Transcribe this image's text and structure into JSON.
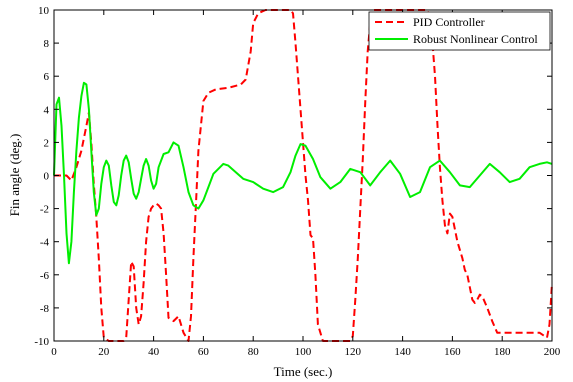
{
  "chart_data": {
    "type": "line",
    "xlabel": "Time (sec.)",
    "ylabel": "Fin angle (deg.)",
    "xlim": [
      0,
      200
    ],
    "ylim": [
      -10,
      10
    ],
    "xticks": [
      "0",
      "20",
      "40",
      "60",
      "80",
      "100",
      "120",
      "140",
      "160",
      "180",
      "200"
    ],
    "yticks": [
      "-10",
      "-8",
      "-6",
      "-4",
      "-2",
      "0",
      "2",
      "4",
      "6",
      "8",
      "10"
    ],
    "grid": false,
    "legend_position": "top-right",
    "series": [
      {
        "name": "PID Controller",
        "color": "#ff0000",
        "style": "dashed",
        "x": [
          0,
          5,
          7,
          9,
          11,
          13,
          14,
          15,
          16,
          17,
          18,
          19,
          20,
          22,
          25,
          28,
          29,
          30,
          31,
          32,
          33,
          34,
          35,
          36,
          37,
          38,
          39,
          40,
          41,
          42,
          43,
          44,
          45,
          46,
          48,
          50,
          52,
          54,
          55,
          56,
          57,
          58,
          60,
          62,
          65,
          70,
          75,
          77,
          79,
          80,
          82,
          85,
          88,
          90,
          92,
          94,
          95,
          96,
          97,
          98,
          99,
          100,
          101,
          102,
          103,
          104,
          105,
          106,
          108,
          110,
          112,
          115,
          117,
          119,
          120,
          121,
          122,
          123,
          124,
          125,
          126,
          127,
          128,
          130,
          135,
          140,
          145,
          148,
          150,
          151,
          152,
          153,
          154,
          155,
          156,
          157,
          158,
          159,
          160,
          162,
          164,
          165,
          166,
          168,
          169,
          170,
          171,
          172,
          174,
          176,
          178,
          180,
          185,
          190,
          195,
          198,
          199,
          200
        ],
        "y": [
          0,
          0,
          -0.3,
          0.5,
          1.5,
          3,
          3.8,
          2,
          -0.5,
          -2.5,
          -5,
          -8,
          -9.8,
          -10,
          -10,
          -10,
          -9.8,
          -7.5,
          -5.2,
          -5.5,
          -8,
          -9,
          -8.5,
          -6.5,
          -4,
          -2.5,
          -2,
          -1.8,
          -1.7,
          -1.8,
          -2,
          -3.5,
          -6,
          -8.6,
          -8.8,
          -8.5,
          -9.5,
          -10,
          -8.5,
          -5,
          -1.8,
          1.5,
          4.5,
          5,
          5.2,
          5.3,
          5.5,
          5.8,
          7.5,
          9.2,
          9.8,
          10,
          10,
          10,
          10,
          10,
          10,
          9.8,
          8,
          6,
          4,
          2,
          0,
          -1.5,
          -3.6,
          -3.8,
          -6,
          -9,
          -10,
          -10,
          -10,
          -10,
          -10,
          -10,
          -9.7,
          -7.5,
          -5,
          -2,
          1,
          4.5,
          7.5,
          9.2,
          10,
          10,
          10,
          10,
          10,
          10,
          10,
          9.5,
          8,
          6,
          3,
          0.5,
          -1.5,
          -3,
          -3.5,
          -2.3,
          -2.5,
          -4,
          -5,
          -5.7,
          -6,
          -7.5,
          -7.7,
          -7.5,
          -7.2,
          -7.3,
          -8,
          -8.8,
          -9.5,
          -9.5,
          -9.5,
          -9.5,
          -9.5,
          -9.8,
          -9,
          -6.5
        ]
      },
      {
        "name": "Robust Nonlinear Control",
        "color": "#00ee00",
        "style": "solid",
        "x": [
          0,
          1,
          2,
          3,
          4,
          5,
          6,
          7,
          8,
          9,
          10,
          11,
          12,
          13,
          14,
          15,
          16,
          17,
          18,
          19,
          20,
          21,
          22,
          23,
          24,
          25,
          26,
          27,
          28,
          29,
          30,
          31,
          32,
          33,
          34,
          35,
          36,
          37,
          38,
          39,
          40,
          41,
          42,
          44,
          46,
          48,
          50,
          52,
          54,
          56,
          58,
          60,
          62,
          64,
          66,
          68,
          70,
          73,
          76,
          80,
          84,
          88,
          92,
          95,
          97,
          99,
          101,
          104,
          107,
          111,
          115,
          119,
          123,
          127,
          131,
          135,
          139,
          143,
          147,
          151,
          155,
          159,
          163,
          167,
          171,
          175,
          179,
          183,
          187,
          191,
          195,
          198,
          200
        ],
        "y": [
          0,
          4.3,
          4.7,
          3,
          0,
          -3.5,
          -5.3,
          -4,
          -1,
          1.5,
          3.5,
          4.8,
          5.6,
          5.5,
          4,
          1.5,
          -1,
          -2.4,
          -2,
          -0.5,
          0.5,
          0.9,
          0.6,
          -0.6,
          -1.6,
          -1.8,
          -1.2,
          0,
          0.9,
          1.2,
          0.8,
          -0.2,
          -1.1,
          -1.4,
          -1,
          -0.2,
          0.6,
          1,
          0.6,
          -0.3,
          -0.8,
          -0.5,
          0.5,
          1.3,
          1.4,
          2,
          1.8,
          0.5,
          -1,
          -1.8,
          -2,
          -1.5,
          -0.7,
          0.1,
          0.4,
          0.7,
          0.6,
          0.2,
          -0.2,
          -0.4,
          -0.8,
          -1,
          -0.7,
          0.2,
          1.2,
          1.9,
          1.8,
          1,
          -0.1,
          -0.8,
          -0.4,
          0.4,
          0.2,
          -0.6,
          0.2,
          0.9,
          0.1,
          -1.3,
          -1,
          0.5,
          0.9,
          0.2,
          -0.6,
          -0.7,
          0,
          0.7,
          0.2,
          -0.4,
          -0.2,
          0.5,
          0.7,
          0.8,
          0.7
        ]
      }
    ]
  }
}
